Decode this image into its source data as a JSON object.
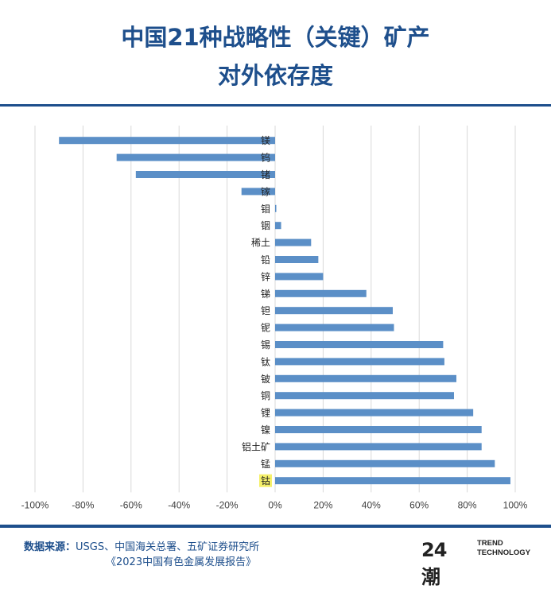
{
  "header": {
    "title_line1": "中国21种战略性（关键）矿产",
    "title_line2": "对外依存度"
  },
  "footer": {
    "source_label": "数据来源：",
    "source_line1": "USGS、中国海关总署、五矿证券研究所",
    "source_line2": "《2023中国有色金属发展报告》"
  },
  "logo": {
    "mark": "24潮",
    "text_line1": "TREND",
    "text_line2": "TECHNOLOGY"
  },
  "colors": {
    "title": "#1e4f8c",
    "bar": "#5b8fc7",
    "highlight": "#f5f06a",
    "grid": "#d9d9d9"
  },
  "chart_data": {
    "type": "bar",
    "orientation": "horizontal",
    "categories": [
      "镁",
      "钨",
      "锗",
      "镓",
      "钼",
      "铟",
      "稀土",
      "铅",
      "锌",
      "锑",
      "钽",
      "铌",
      "锡",
      "钛",
      "铍",
      "铜",
      "锂",
      "镍",
      "铝土矿",
      "锰",
      "钴"
    ],
    "values": [
      -0.9,
      -0.66,
      -0.58,
      -0.14,
      0.005,
      0.025,
      0.15,
      0.18,
      0.2,
      0.38,
      0.49,
      0.495,
      0.7,
      0.705,
      0.755,
      0.745,
      0.825,
      0.86,
      0.86,
      0.915,
      0.98
    ],
    "highlighted_category": "钴",
    "xlim": [
      -1.0,
      1.0
    ],
    "xticks": [
      -1.0,
      -0.8,
      -0.6,
      -0.4,
      -0.2,
      0,
      0.2,
      0.4,
      0.6,
      0.8,
      1.0
    ],
    "xtick_labels": [
      "-100%",
      "-80%",
      "-60%",
      "-40%",
      "-20%",
      "0%",
      "20%",
      "40%",
      "60%",
      "80%",
      "100%"
    ],
    "grid": true,
    "legend": false,
    "title": "",
    "xlabel": "",
    "ylabel": ""
  }
}
